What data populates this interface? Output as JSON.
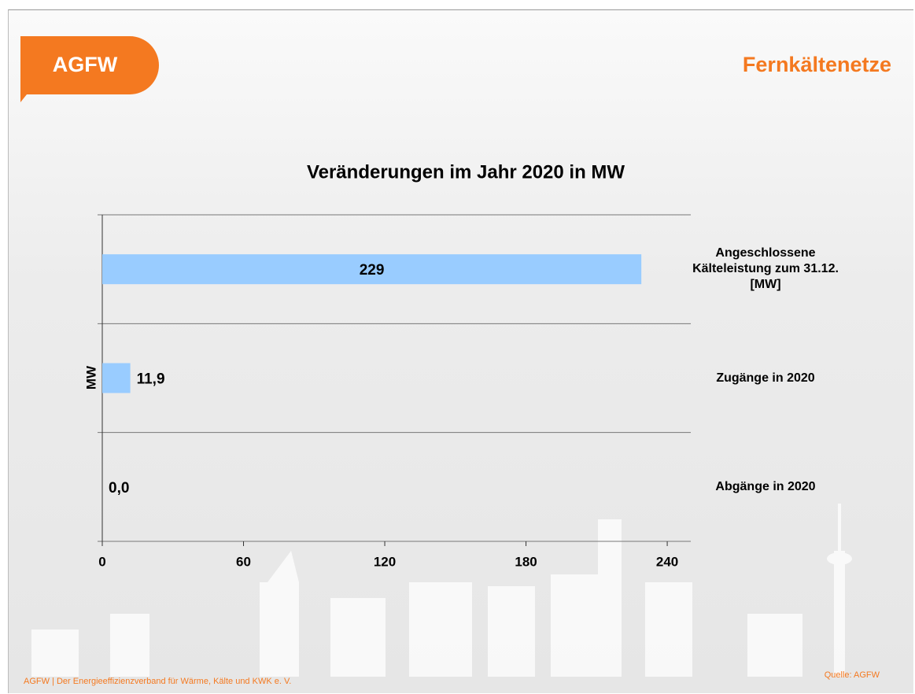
{
  "header": {
    "logo": "AGFW",
    "title": "Fernkältenetze"
  },
  "footer": {
    "text": "AGFW | Der Energieeffizienzverband für Wärme, Kälte und KWK e. V.",
    "source": "Quelle: AGFW"
  },
  "chart_data": {
    "type": "bar",
    "orientation": "horizontal",
    "title": "Veränderungen im Jahr 2020 in MW",
    "y_label": "MW",
    "categories": [
      "Angeschlossene Kälteleistung zum 31.12. [MW]",
      "Zugänge in 2020",
      "Abgänge in 2020"
    ],
    "values": [
      229,
      11.9,
      0.0
    ],
    "value_labels": [
      "229",
      "11,9",
      "0,0"
    ],
    "color": "#99ccff",
    "xlim": [
      0,
      250
    ],
    "xticks": [
      0,
      60,
      120,
      180,
      240
    ]
  }
}
